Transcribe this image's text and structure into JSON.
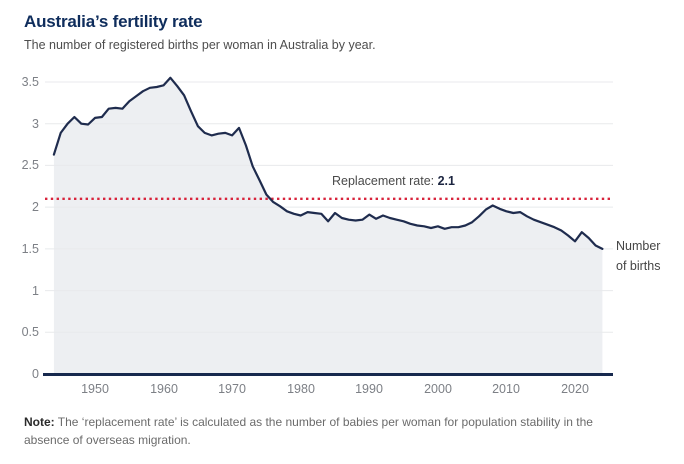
{
  "chart_data": {
    "type": "area",
    "title": "Australia’s fertility rate",
    "subtitle": "The number of registered births per woman in Australia by year.",
    "xlabel": "",
    "ylabel": "",
    "x": [
      1944,
      1945,
      1946,
      1947,
      1948,
      1949,
      1950,
      1951,
      1952,
      1953,
      1954,
      1955,
      1956,
      1957,
      1958,
      1959,
      1960,
      1961,
      1962,
      1963,
      1964,
      1965,
      1966,
      1967,
      1968,
      1969,
      1970,
      1971,
      1972,
      1973,
      1974,
      1975,
      1976,
      1977,
      1978,
      1979,
      1980,
      1981,
      1982,
      1983,
      1984,
      1985,
      1986,
      1987,
      1988,
      1989,
      1990,
      1991,
      1992,
      1993,
      1994,
      1995,
      1996,
      1997,
      1998,
      1999,
      2000,
      2001,
      2002,
      2003,
      2004,
      2005,
      2006,
      2007,
      2008,
      2009,
      2010,
      2011,
      2012,
      2013,
      2014,
      2015,
      2016,
      2017,
      2018,
      2019,
      2020,
      2021,
      2022,
      2023,
      2024
    ],
    "values": [
      2.63,
      2.89,
      3.0,
      3.08,
      3.0,
      2.99,
      3.07,
      3.08,
      3.18,
      3.19,
      3.18,
      3.27,
      3.33,
      3.39,
      3.43,
      3.44,
      3.46,
      3.55,
      3.45,
      3.34,
      3.15,
      2.97,
      2.89,
      2.86,
      2.88,
      2.89,
      2.86,
      2.95,
      2.74,
      2.49,
      2.32,
      2.15,
      2.06,
      2.01,
      1.95,
      1.92,
      1.9,
      1.94,
      1.93,
      1.92,
      1.83,
      1.93,
      1.87,
      1.85,
      1.84,
      1.85,
      1.91,
      1.86,
      1.9,
      1.87,
      1.85,
      1.83,
      1.8,
      1.78,
      1.77,
      1.75,
      1.77,
      1.74,
      1.76,
      1.76,
      1.78,
      1.82,
      1.89,
      1.97,
      2.02,
      1.98,
      1.95,
      1.93,
      1.94,
      1.89,
      1.85,
      1.82,
      1.79,
      1.76,
      1.72,
      1.66,
      1.59,
      1.7,
      1.63,
      1.54,
      1.5
    ],
    "series_name": "Number of births",
    "yticks": [
      0,
      0.5,
      1,
      1.5,
      2,
      2.5,
      3,
      3.5
    ],
    "xticks": [
      1950,
      1960,
      1970,
      1980,
      1990,
      2000,
      2010,
      2020
    ],
    "ylim": [
      0,
      3.55
    ],
    "xlim": [
      1944,
      2024
    ],
    "grid": "horizontal",
    "legend_position": "none",
    "reference_line": {
      "value": 2.1,
      "label": "Replacement rate:",
      "value_text": "2.1"
    }
  },
  "note": {
    "label": "Note:",
    "text": "The ‘replacement rate’ is calculated as the number of babies per woman for population stability in the absence of overseas migration."
  },
  "colors": {
    "line": "#1f2c4e",
    "area_fill": "#edeff2",
    "axis": "#17294e",
    "grid": "#e8eaec",
    "reference_red": "#d8243c",
    "title_navy": "#0f2d5c"
  }
}
